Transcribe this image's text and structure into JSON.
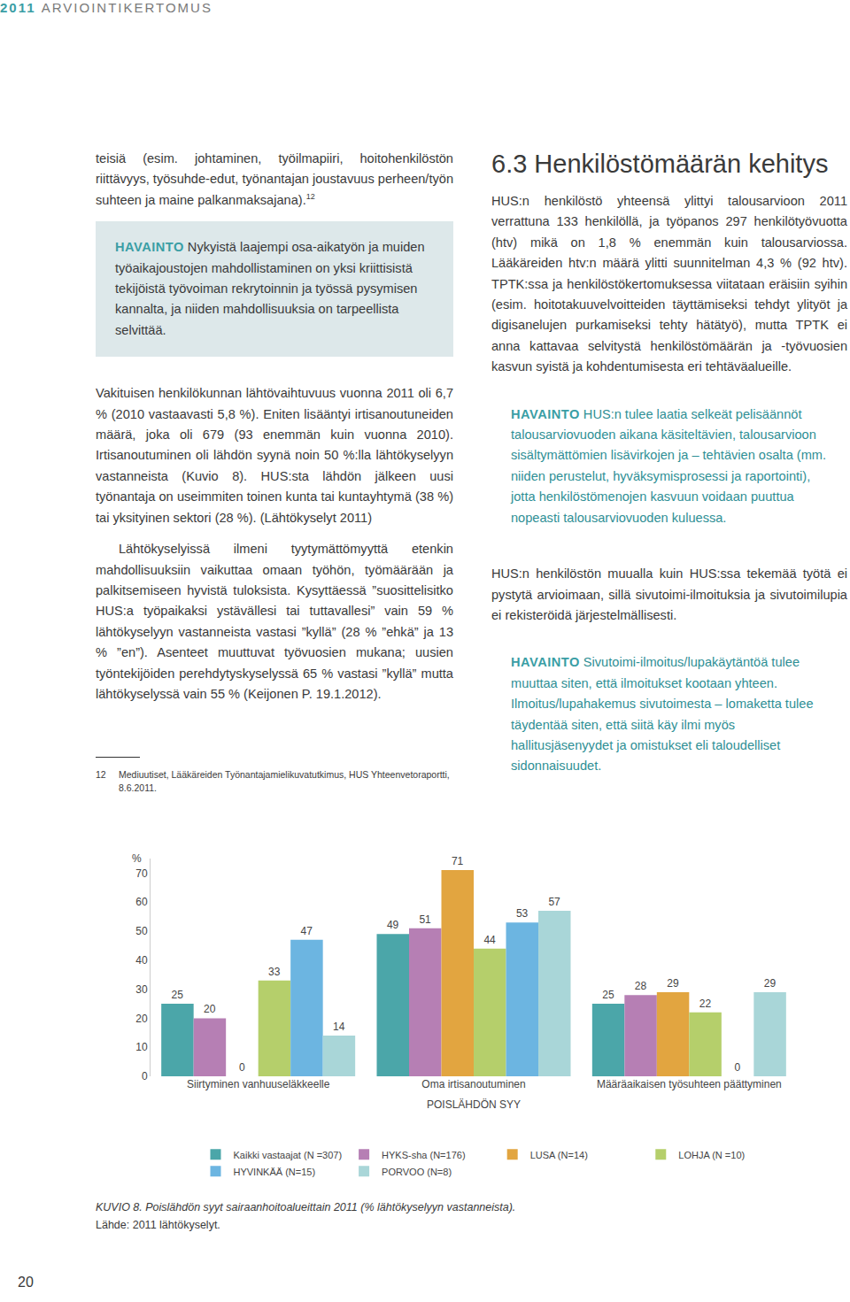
{
  "header": {
    "title": "2011 ARVIOINTIKERTOMUS"
  },
  "left_column": {
    "paragraph_1": {
      "text": "teisiä (esim. johtaminen, työilmapiiri, hoitohenkilöstön riittävyys, työsuhde-edut, työnantajan joustavuus perheen/työn suhteen ja maine palkanmaksajana).",
      "footnote_ref": "12"
    },
    "observation_1": {
      "label": "HAVAINTO",
      "text": "Nykyistä laajempi osa-aikatyön ja muiden työaikajoustojen mahdollistaminen on yksi kriittisistä tekijöistä työvoiman rekrytoinnin ja työssä pysymisen kannalta, ja niiden mahdollisuuksia on tarpeellista selvittää."
    },
    "paragraph_2": {
      "text": "Vakituisen henkilökunnan lähtövaihtuvuus vuonna 2011 oli 6,7 % (2010 vastaavasti 5,8 %). Eniten lisääntyi irtisanoutuneiden määrä, joka oli 679 (93 enemmän kuin vuonna 2010). Irtisanoutuminen oli lähdön syynä noin 50 %:lla lähtökyselyyn vastanneista (Kuvio 8). HUS:sta lähdön jälkeen uusi työnantaja on useimmiten toinen kunta tai kuntayhtymä (38 %) tai yksityinen sektori (28 %). (Lähtökyselyt 2011)"
    },
    "paragraph_3": {
      "text": "Lähtökyselyissä ilmeni tyytymättömyyttä etenkin mahdollisuuksiin vaikuttaa omaan työhön, työmäärään ja palkitsemiseen hyvistä tuloksista. Kysyttäessä ”suosittelisitko HUS:a työpaikaksi ystävällesi tai tuttavallesi” vain 59 % lähtökyselyyn vastanneista vastasi ”kyllä” (28 % ”ehkä” ja 13 % ”en”). Asenteet muuttuvat työvuosien mukana; uusien työntekijöiden perehdytyskyselyssä 65 % vastasi ”kyllä” mutta lähtökyselyssä vain 55 % (Keijonen P. 19.1.2012)."
    }
  },
  "footnote": {
    "number": "12",
    "text": "Mediuutiset, Lääkäreiden Työnantajamielikuvatutkimus, HUS Yhteenvetoraportti, 8.6.2011."
  },
  "right_column": {
    "heading_1": {
      "text": "6.3 Henkilöstömäärän kehitys"
    },
    "paragraph_1": {
      "text": "HUS:n henkilöstö yhteensä ylittyi talousarvioon 2011 verrattuna 133 henkilöllä, ja työpanos 297 henkilötyövuotta (htv) mikä on 1,8 % enemmän kuin talousarviossa. Lääkäreiden htv:n määrä ylitti suunnitelman 4,3 % (92 htv). TPTK:ssa ja henkilöstökertomuksessa viitataan eräisiin syihin (esim. hoitotakuuvelvoitteiden täyttämiseksi tehdyt ylityöt ja digisanelujen purkamiseksi tehty hätätyö), mutta TPTK ei anna kattavaa selvitystä henkilöstömäärän ja -työvuosien kasvun syistä ja kohdentumisesta eri tehtäväalueille."
    },
    "observation_1": {
      "label": "HAVAINTO",
      "text": "HUS:n tulee laatia selkeät pelisäännöt talousarviovuoden aikana käsiteltävien, talousarvioon sisältymättömien lisävirkojen ja – tehtävien osalta (mm. niiden perustelut, hyväksymisprosessi ja raportointi), jotta henkilöstömenojen kasvuun voidaan puuttua nopeasti talousarviovuoden kuluessa."
    },
    "paragraph_2": {
      "text": "HUS:n henkilöstön muualla kuin HUS:ssa tekemää työtä ei pystytä arvioimaan, sillä sivutoimi-ilmoituksia ja sivutoimilupia ei rekisteröidä järjestelmällisesti."
    },
    "observation_2": {
      "label": "HAVAINTO",
      "text": "Sivutoimi-ilmoitus/lupakäytäntöä tulee muuttaa siten, että ilmoitukset kootaan yhteen. Ilmoitus/lupahakemus sivutoimesta – lomaketta tulee täydentää siten, että siitä käy ilmi myös hallitusjäsenyydet ja omistukset eli taloudelliset sidonnaisuudet."
    }
  },
  "chart_data": {
    "type": "bar",
    "y_label": "%",
    "x_label": "POISLÄHDÖN SYY",
    "categories": [
      "Siirtyminen vanhuuseläkkeelle",
      "Oma irtisanoutuminen",
      "Määräaikaisen työsuhteen päättyminen"
    ],
    "series": [
      {
        "name": "Kaikki vastaajat (N =307)",
        "color": "#4ba6a9",
        "values": [
          25,
          49,
          25
        ]
      },
      {
        "name": "HYKS-sha (N=176)",
        "color": "#b67fb4",
        "values": [
          20,
          51,
          28
        ]
      },
      {
        "name": "LUSA (N=14)",
        "color": "#e2a540",
        "values": [
          0,
          71,
          29
        ]
      },
      {
        "name": "LOHJA (N =10)",
        "color": "#b5cf6b",
        "values": [
          33,
          44,
          22
        ]
      },
      {
        "name": "HYVINKÄÄ (N=15)",
        "color": "#6cb5e1",
        "values": [
          47,
          53,
          0
        ]
      },
      {
        "name": "PORVOO (N=8)",
        "color": "#a9d6d8",
        "values": [
          14,
          57,
          29
        ]
      }
    ],
    "ylim": [
      0,
      75
    ],
    "yticks": [
      0,
      10,
      20,
      30,
      40,
      50,
      60,
      70
    ],
    "data_labels": true,
    "grid": false,
    "legend": "bottom"
  },
  "caption": {
    "title": "KUVIO 8. Poislähdön syyt sairaanhoitoalueittain 2011 (% lähtökyselyyn vastanneista).",
    "source": "Lähde: 2011 lähtökyselyt."
  },
  "page_number": "20"
}
